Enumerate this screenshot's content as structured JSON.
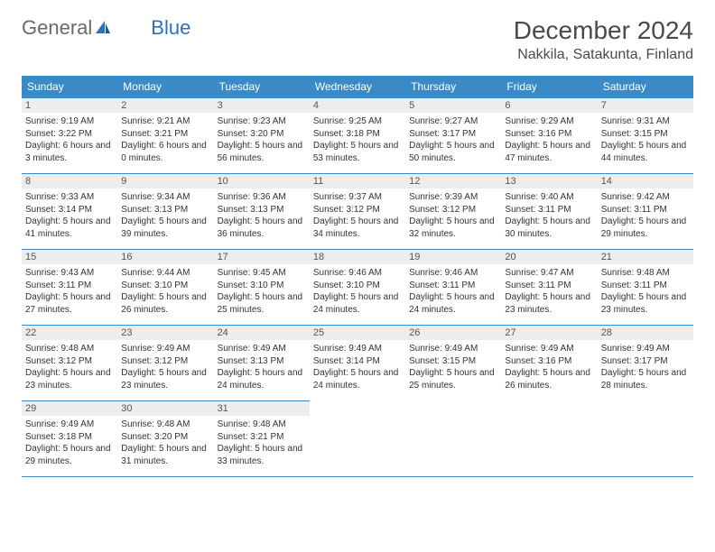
{
  "logo": {
    "text1": "General",
    "text2": "Blue"
  },
  "title": "December 2024",
  "location": "Nakkila, Satakunta, Finland",
  "colors": {
    "header_bg": "#3a8ac8",
    "header_text": "#ffffff",
    "border": "#3a8ac8",
    "daynum_bg": "#ededed",
    "body_text": "#333333",
    "logo_gray": "#6a6a6a",
    "logo_blue": "#2f72b3"
  },
  "day_headers": [
    "Sunday",
    "Monday",
    "Tuesday",
    "Wednesday",
    "Thursday",
    "Friday",
    "Saturday"
  ],
  "weeks": [
    [
      {
        "n": "1",
        "sr": "Sunrise: 9:19 AM",
        "ss": "Sunset: 3:22 PM",
        "dl": "Daylight: 6 hours and 3 minutes."
      },
      {
        "n": "2",
        "sr": "Sunrise: 9:21 AM",
        "ss": "Sunset: 3:21 PM",
        "dl": "Daylight: 6 hours and 0 minutes."
      },
      {
        "n": "3",
        "sr": "Sunrise: 9:23 AM",
        "ss": "Sunset: 3:20 PM",
        "dl": "Daylight: 5 hours and 56 minutes."
      },
      {
        "n": "4",
        "sr": "Sunrise: 9:25 AM",
        "ss": "Sunset: 3:18 PM",
        "dl": "Daylight: 5 hours and 53 minutes."
      },
      {
        "n": "5",
        "sr": "Sunrise: 9:27 AM",
        "ss": "Sunset: 3:17 PM",
        "dl": "Daylight: 5 hours and 50 minutes."
      },
      {
        "n": "6",
        "sr": "Sunrise: 9:29 AM",
        "ss": "Sunset: 3:16 PM",
        "dl": "Daylight: 5 hours and 47 minutes."
      },
      {
        "n": "7",
        "sr": "Sunrise: 9:31 AM",
        "ss": "Sunset: 3:15 PM",
        "dl": "Daylight: 5 hours and 44 minutes."
      }
    ],
    [
      {
        "n": "8",
        "sr": "Sunrise: 9:33 AM",
        "ss": "Sunset: 3:14 PM",
        "dl": "Daylight: 5 hours and 41 minutes."
      },
      {
        "n": "9",
        "sr": "Sunrise: 9:34 AM",
        "ss": "Sunset: 3:13 PM",
        "dl": "Daylight: 5 hours and 39 minutes."
      },
      {
        "n": "10",
        "sr": "Sunrise: 9:36 AM",
        "ss": "Sunset: 3:13 PM",
        "dl": "Daylight: 5 hours and 36 minutes."
      },
      {
        "n": "11",
        "sr": "Sunrise: 9:37 AM",
        "ss": "Sunset: 3:12 PM",
        "dl": "Daylight: 5 hours and 34 minutes."
      },
      {
        "n": "12",
        "sr": "Sunrise: 9:39 AM",
        "ss": "Sunset: 3:12 PM",
        "dl": "Daylight: 5 hours and 32 minutes."
      },
      {
        "n": "13",
        "sr": "Sunrise: 9:40 AM",
        "ss": "Sunset: 3:11 PM",
        "dl": "Daylight: 5 hours and 30 minutes."
      },
      {
        "n": "14",
        "sr": "Sunrise: 9:42 AM",
        "ss": "Sunset: 3:11 PM",
        "dl": "Daylight: 5 hours and 29 minutes."
      }
    ],
    [
      {
        "n": "15",
        "sr": "Sunrise: 9:43 AM",
        "ss": "Sunset: 3:11 PM",
        "dl": "Daylight: 5 hours and 27 minutes."
      },
      {
        "n": "16",
        "sr": "Sunrise: 9:44 AM",
        "ss": "Sunset: 3:10 PM",
        "dl": "Daylight: 5 hours and 26 minutes."
      },
      {
        "n": "17",
        "sr": "Sunrise: 9:45 AM",
        "ss": "Sunset: 3:10 PM",
        "dl": "Daylight: 5 hours and 25 minutes."
      },
      {
        "n": "18",
        "sr": "Sunrise: 9:46 AM",
        "ss": "Sunset: 3:10 PM",
        "dl": "Daylight: 5 hours and 24 minutes."
      },
      {
        "n": "19",
        "sr": "Sunrise: 9:46 AM",
        "ss": "Sunset: 3:11 PM",
        "dl": "Daylight: 5 hours and 24 minutes."
      },
      {
        "n": "20",
        "sr": "Sunrise: 9:47 AM",
        "ss": "Sunset: 3:11 PM",
        "dl": "Daylight: 5 hours and 23 minutes."
      },
      {
        "n": "21",
        "sr": "Sunrise: 9:48 AM",
        "ss": "Sunset: 3:11 PM",
        "dl": "Daylight: 5 hours and 23 minutes."
      }
    ],
    [
      {
        "n": "22",
        "sr": "Sunrise: 9:48 AM",
        "ss": "Sunset: 3:12 PM",
        "dl": "Daylight: 5 hours and 23 minutes."
      },
      {
        "n": "23",
        "sr": "Sunrise: 9:49 AM",
        "ss": "Sunset: 3:12 PM",
        "dl": "Daylight: 5 hours and 23 minutes."
      },
      {
        "n": "24",
        "sr": "Sunrise: 9:49 AM",
        "ss": "Sunset: 3:13 PM",
        "dl": "Daylight: 5 hours and 24 minutes."
      },
      {
        "n": "25",
        "sr": "Sunrise: 9:49 AM",
        "ss": "Sunset: 3:14 PM",
        "dl": "Daylight: 5 hours and 24 minutes."
      },
      {
        "n": "26",
        "sr": "Sunrise: 9:49 AM",
        "ss": "Sunset: 3:15 PM",
        "dl": "Daylight: 5 hours and 25 minutes."
      },
      {
        "n": "27",
        "sr": "Sunrise: 9:49 AM",
        "ss": "Sunset: 3:16 PM",
        "dl": "Daylight: 5 hours and 26 minutes."
      },
      {
        "n": "28",
        "sr": "Sunrise: 9:49 AM",
        "ss": "Sunset: 3:17 PM",
        "dl": "Daylight: 5 hours and 28 minutes."
      }
    ],
    [
      {
        "n": "29",
        "sr": "Sunrise: 9:49 AM",
        "ss": "Sunset: 3:18 PM",
        "dl": "Daylight: 5 hours and 29 minutes."
      },
      {
        "n": "30",
        "sr": "Sunrise: 9:48 AM",
        "ss": "Sunset: 3:20 PM",
        "dl": "Daylight: 5 hours and 31 minutes."
      },
      {
        "n": "31",
        "sr": "Sunrise: 9:48 AM",
        "ss": "Sunset: 3:21 PM",
        "dl": "Daylight: 5 hours and 33 minutes."
      },
      null,
      null,
      null,
      null
    ]
  ]
}
